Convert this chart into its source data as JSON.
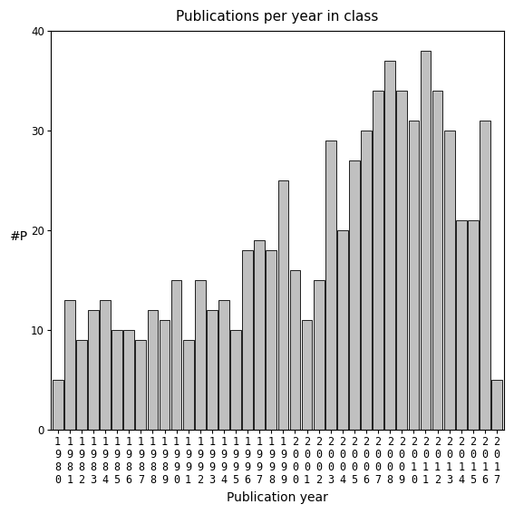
{
  "title": "Publications per year in class",
  "xlabel": "Publication year",
  "ylabel": "#P",
  "years": [
    "1980",
    "1981",
    "1982",
    "1983",
    "1984",
    "1985",
    "1986",
    "1987",
    "1988",
    "1989",
    "1990",
    "1991",
    "1992",
    "1993",
    "1994",
    "1995",
    "1996",
    "1997",
    "1998",
    "1999",
    "2000",
    "2001",
    "2002",
    "2003",
    "2004",
    "2005",
    "2006",
    "2007",
    "2008",
    "2009",
    "2010",
    "2011",
    "2012",
    "2013",
    "2014",
    "2015",
    "2016",
    "2017"
  ],
  "values": [
    5,
    13,
    9,
    12,
    13,
    10,
    10,
    9,
    12,
    11,
    15,
    9,
    15,
    12,
    13,
    10,
    18,
    19,
    18,
    25,
    16,
    11,
    15,
    29,
    20,
    27,
    30,
    34,
    37,
    34,
    31,
    38,
    34,
    30,
    21,
    21,
    31,
    5
  ],
  "bar_color": "#c0c0c0",
  "bar_edge_color": "#000000",
  "ylim": [
    0,
    40
  ],
  "yticks": [
    0,
    10,
    20,
    30,
    40
  ],
  "bg_color": "#ffffff",
  "title_fontsize": 11,
  "label_fontsize": 10,
  "tick_fontsize": 8.5
}
